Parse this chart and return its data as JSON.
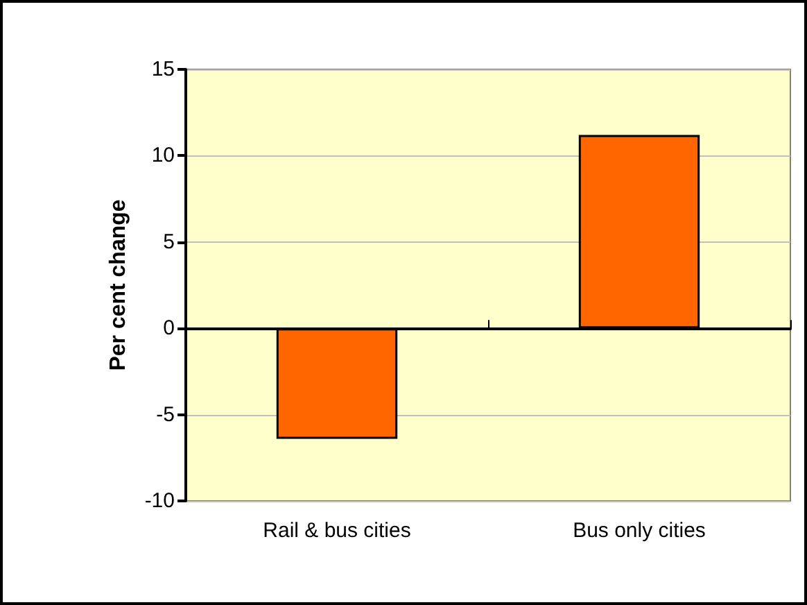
{
  "chart_data": {
    "type": "bar",
    "ylabel": "Per cent change",
    "categories": [
      "Rail & bus cities",
      "Bus only cities"
    ],
    "values": [
      -6.4,
      11.2
    ],
    "color": "#ff6600",
    "ylim": [
      -10,
      15
    ],
    "yticks": [
      -10,
      -5,
      0,
      5,
      10,
      15
    ],
    "grid": "y"
  }
}
